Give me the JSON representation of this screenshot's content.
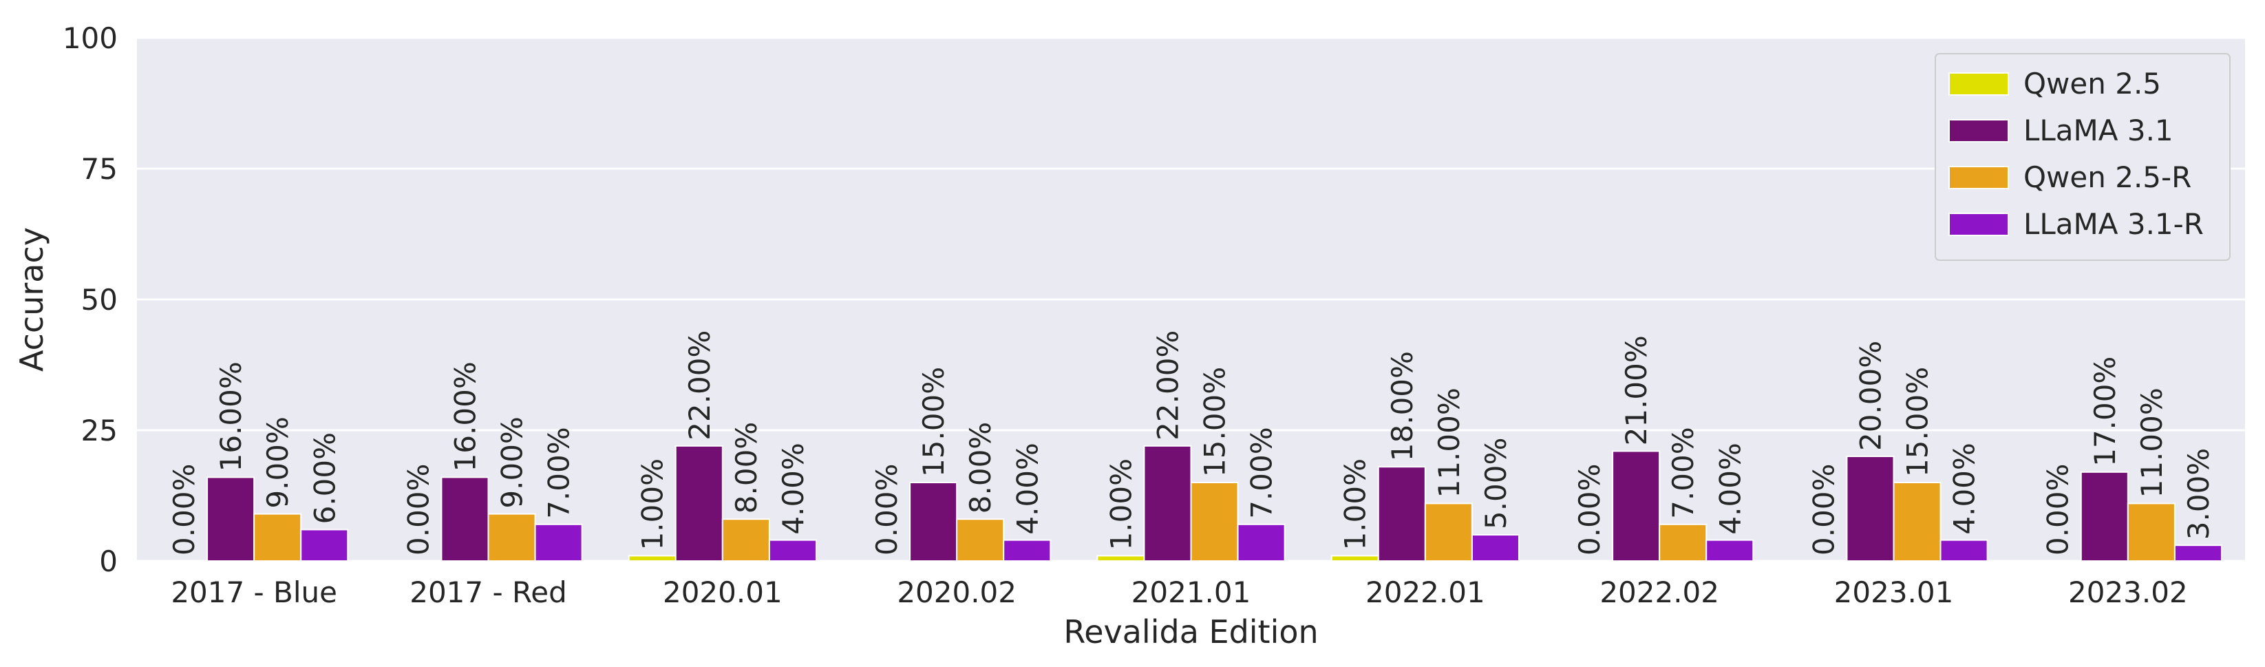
{
  "chart_data": {
    "type": "bar",
    "title": "",
    "xlabel": "Revalida Edition",
    "ylabel": "Accuracy",
    "ylim": [
      0,
      100
    ],
    "yticks": [
      "0",
      "25",
      "50",
      "75",
      "100"
    ],
    "categories": [
      "2017 - Blue",
      "2017 - Red",
      "2020.01",
      "2020.02",
      "2021.01",
      "2022.01",
      "2022.02",
      "2023.01",
      "2023.02"
    ],
    "series": [
      {
        "name": "Qwen 2.5",
        "color": "#e0e000",
        "values": [
          0,
          0,
          1,
          0,
          1,
          1,
          0,
          0,
          0
        ],
        "labels": [
          "0.00%",
          "0.00%",
          "1.00%",
          "0.00%",
          "1.00%",
          "1.00%",
          "0.00%",
          "0.00%",
          "0.00%"
        ]
      },
      {
        "name": "LLaMA 3.1",
        "color": "#730f73",
        "values": [
          16,
          16,
          22,
          15,
          22,
          18,
          21,
          20,
          17
        ],
        "labels": [
          "16.00%",
          "16.00%",
          "22.00%",
          "15.00%",
          "22.00%",
          "18.00%",
          "21.00%",
          "20.00%",
          "17.00%"
        ]
      },
      {
        "name": "Qwen 2.5-R",
        "color": "#e8a21c",
        "values": [
          9,
          9,
          8,
          8,
          15,
          11,
          7,
          15,
          11
        ],
        "labels": [
          "9.00%",
          "9.00%",
          "8.00%",
          "8.00%",
          "15.00%",
          "11.00%",
          "7.00%",
          "15.00%",
          "11.00%"
        ]
      },
      {
        "name": "LLaMA 3.1-R",
        "color": "#8e14c8",
        "values": [
          6,
          7,
          4,
          4,
          7,
          5,
          4,
          4,
          3
        ],
        "labels": [
          "6.00%",
          "7.00%",
          "4.00%",
          "4.00%",
          "7.00%",
          "5.00%",
          "4.00%",
          "4.00%",
          "3.00%"
        ]
      }
    ],
    "grid": true,
    "legend_position": "top-right",
    "background_color": "#eaeaf2",
    "grid_color": "#ffffff"
  }
}
